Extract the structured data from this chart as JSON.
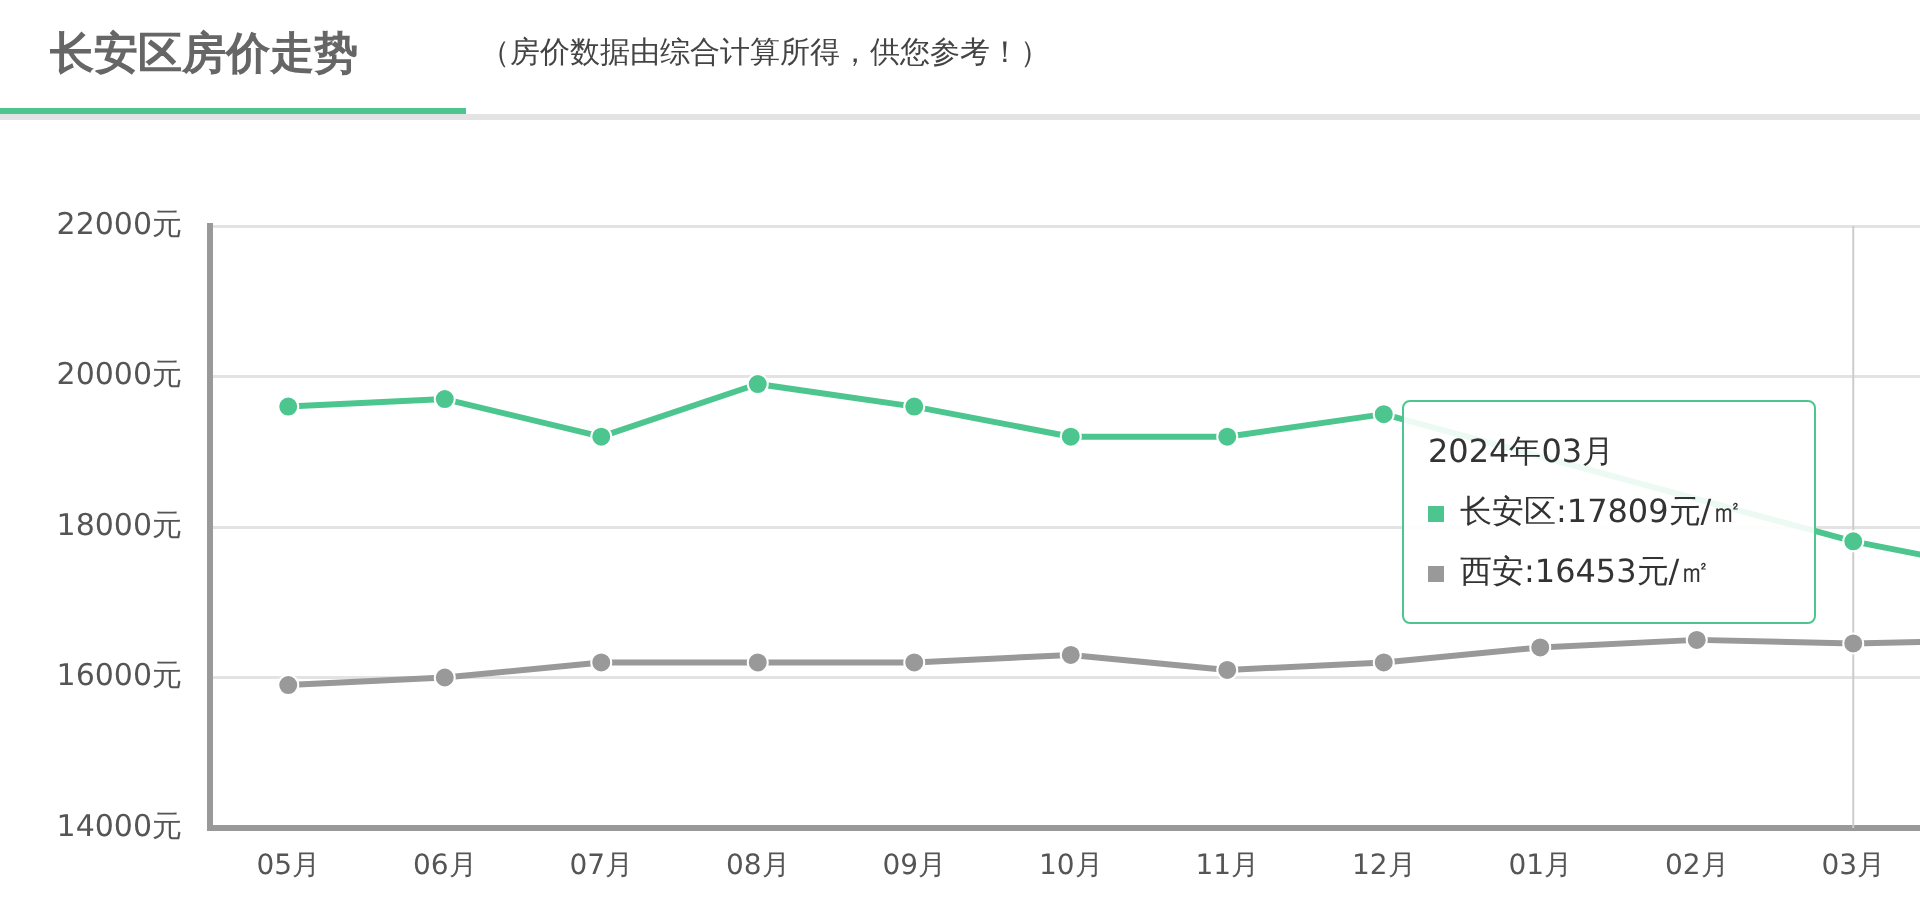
{
  "chart_data": {
    "type": "line",
    "title": "长安区房价走势",
    "subtitle": "（房价数据由综合计算所得，供您参考！）",
    "categories": [
      "05月",
      "06月",
      "07月",
      "08月",
      "09月",
      "10月",
      "11月",
      "12月",
      "01月",
      "02月",
      "03月",
      null
    ],
    "series": [
      {
        "color": "#4cc68e",
        "values": [
          19600,
          19700,
          19200,
          19900,
          19600,
          19200,
          19200,
          19500,
          null,
          null,
          17809,
          17400
        ]
      },
      {
        "color": "#999999",
        "values": [
          15900,
          16000,
          16200,
          16200,
          16200,
          16300,
          16100,
          16200,
          16400,
          16500,
          16453,
          16500
        ]
      }
    ],
    "ylim": [
      14000,
      22000
    ],
    "yticks": [
      {
        "value": 14000,
        "label": "14000元"
      },
      {
        "value": 16000,
        "label": "16000元"
      },
      {
        "value": 18000,
        "label": "18000元"
      },
      {
        "value": 20000,
        "label": "20000元"
      },
      {
        "value": 22000,
        "label": "22000元"
      }
    ],
    "grid": "y",
    "legend": false,
    "marker": "circle",
    "line_style": "solid",
    "ref_lines": [
      {
        "axis": "x",
        "value": "03月",
        "color": "#cccccc"
      }
    ],
    "annotations": [
      "2024年03月",
      "长安区:17809元/㎡",
      "西安:16453元/㎡"
    ]
  }
}
